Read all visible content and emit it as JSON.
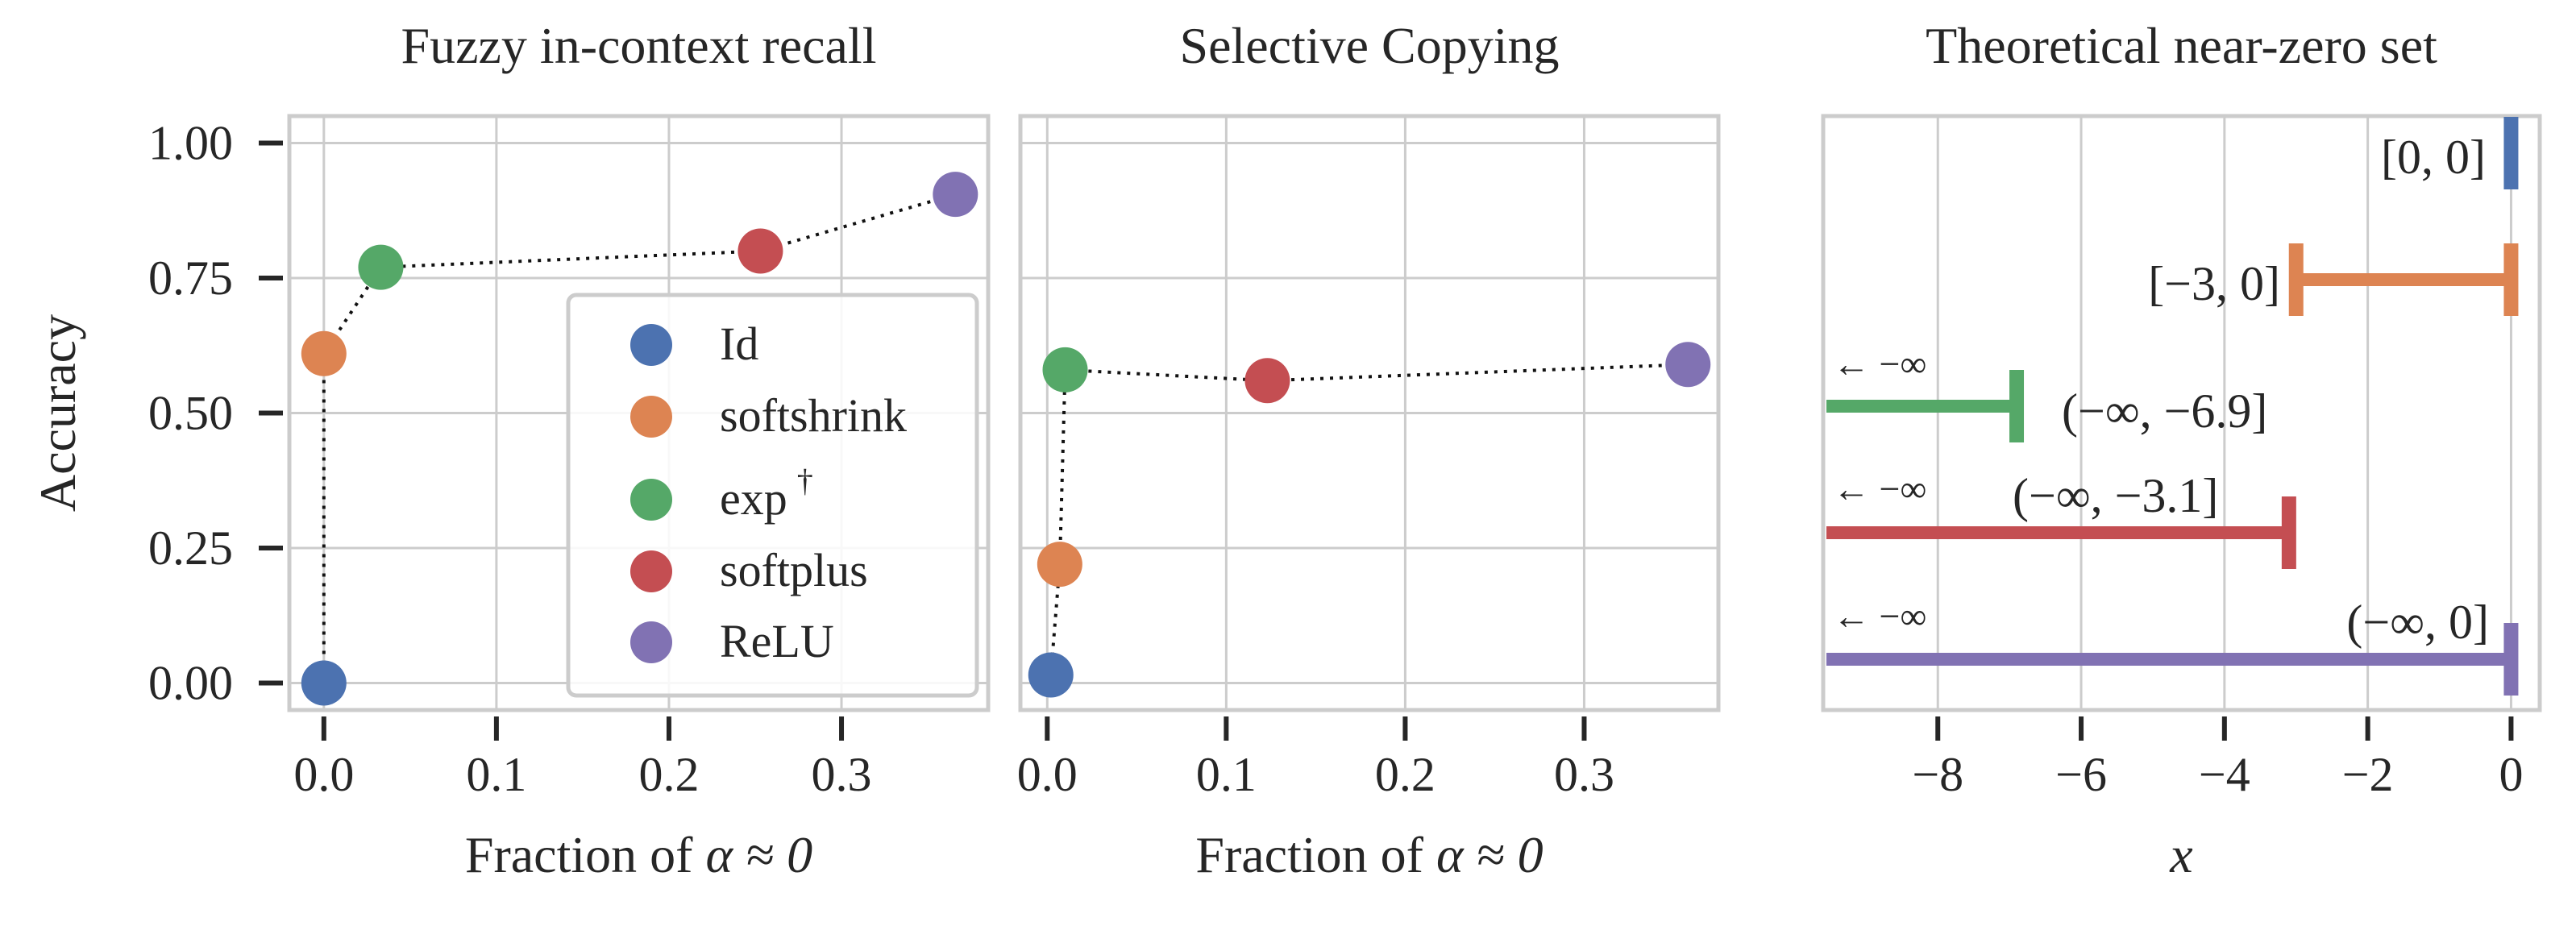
{
  "chart_data": [
    {
      "type": "scatter",
      "title": "Fuzzy in-context recall",
      "xlabel": "Fraction of α ≈ 0",
      "xlabel_prefix": "Fraction of ",
      "xlabel_math": "α ≈ 0",
      "ylabel": "Accuracy",
      "xlim": [
        -0.02,
        0.385
      ],
      "ylim": [
        -0.05,
        1.05
      ],
      "xticks": [
        0.0,
        0.1,
        0.2,
        0.3
      ],
      "xtick_labels": [
        "0.0",
        "0.1",
        "0.2",
        "0.3"
      ],
      "yticks": [
        0.0,
        0.25,
        0.5,
        0.75,
        1.0
      ],
      "ytick_labels": [
        "0.00",
        "0.25",
        "0.50",
        "0.75",
        "1.00"
      ],
      "grid": true,
      "connector": "dotted",
      "legend_position": "lower-right",
      "series": [
        {
          "name": "Id",
          "color": "#4c72b0",
          "x": 0.0,
          "y": 0.0
        },
        {
          "name": "softshrink",
          "color": "#dd8452",
          "x": 0.0,
          "y": 0.61
        },
        {
          "name": "exp †",
          "label": "exp",
          "sup": "†",
          "color": "#55a868",
          "x": 0.033,
          "y": 0.77
        },
        {
          "name": "softplus",
          "color": "#c44e52",
          "x": 0.253,
          "y": 0.8
        },
        {
          "name": "ReLU",
          "color": "#8172b3",
          "x": 0.366,
          "y": 0.905
        }
      ]
    },
    {
      "type": "scatter",
      "title": "Selective Copying",
      "xlabel": "Fraction of α ≈ 0",
      "xlabel_prefix": "Fraction of ",
      "xlabel_math": "α ≈ 0",
      "xlim": [
        -0.015,
        0.375
      ],
      "ylim": [
        -0.05,
        1.05
      ],
      "xticks": [
        0.0,
        0.1,
        0.2,
        0.3
      ],
      "xtick_labels": [
        "0.0",
        "0.1",
        "0.2",
        "0.3"
      ],
      "yticks": [
        0.0,
        0.25,
        0.5,
        0.75,
        1.0
      ],
      "grid": true,
      "connector": "dotted",
      "series": [
        {
          "name": "Id",
          "color": "#4c72b0",
          "x": 0.002,
          "y": 0.015
        },
        {
          "name": "softshrink",
          "color": "#dd8452",
          "x": 0.007,
          "y": 0.22
        },
        {
          "name": "exp †",
          "color": "#55a868",
          "x": 0.01,
          "y": 0.58
        },
        {
          "name": "softplus",
          "color": "#c44e52",
          "x": 0.123,
          "y": 0.56
        },
        {
          "name": "ReLU",
          "color": "#8172b3",
          "x": 0.358,
          "y": 0.59
        }
      ]
    },
    {
      "type": "interval",
      "title": "Theoretical near-zero set",
      "xlabel": "x",
      "xlim": [
        -9.6,
        0.4
      ],
      "xticks": [
        -8,
        -6,
        -4,
        -2,
        0
      ],
      "xtick_labels": [
        "−8",
        "−6",
        "−4",
        "−2",
        "0"
      ],
      "grid": true,
      "neg_inf_marker": "← −∞",
      "intervals": [
        {
          "name": "Id",
          "color": "#4c72b0",
          "low": 0,
          "high": 0,
          "low_infinite": false,
          "label": "[0, 0]"
        },
        {
          "name": "softshrink",
          "color": "#dd8452",
          "low": -3,
          "high": 0,
          "low_infinite": false,
          "label": "[−3, 0]"
        },
        {
          "name": "exp",
          "color": "#55a868",
          "low": null,
          "high": -6.9,
          "low_infinite": true,
          "label": "(−∞, −6.9]"
        },
        {
          "name": "softplus",
          "color": "#c44e52",
          "low": null,
          "high": -3.1,
          "low_infinite": true,
          "label": "(−∞, −3.1]"
        },
        {
          "name": "ReLU",
          "color": "#8172b3",
          "low": null,
          "high": 0,
          "low_infinite": true,
          "label": "(−∞, 0]"
        }
      ]
    }
  ]
}
